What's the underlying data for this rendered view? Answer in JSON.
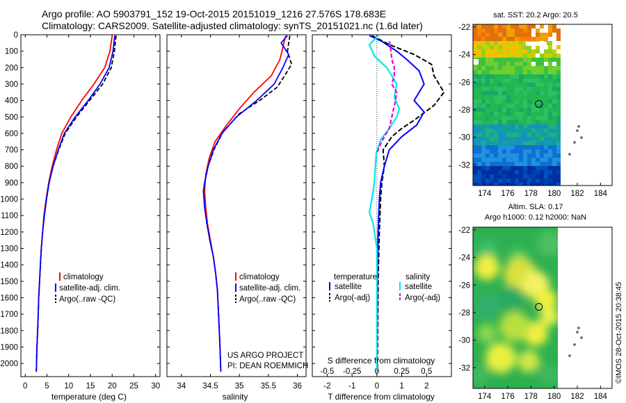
{
  "title_line1": "Argo profile: AO 5903791_152 19-Oct-2015 20151019_1216 27.576S 178.683E",
  "title_line2": "Climatology: CARS2009. Satellite-adjusted climatology: synTS_20151021.nc (1.6d later)",
  "colors": {
    "climatology": "#ff0000",
    "satellite": "#0000ff",
    "argo": "#000000",
    "salinity_satellite": "#00e5ee",
    "salinity_argo": "#e600e6"
  },
  "credits": {
    "line1": "US ARGO PROJECT",
    "line2": "PI: DEAN ROEMMICH"
  },
  "stamp": "©IMOS 28-Oct-2015 20:38:45",
  "chart_data": [
    {
      "type": "line",
      "xlabel": "temperature (deg C)",
      "xlim": [
        -1,
        31
      ],
      "ylim": [
        2080,
        0
      ],
      "xticks": [
        "0",
        "5",
        "10",
        "15",
        "20",
        "25",
        "30"
      ],
      "yticks": [
        "0",
        "100",
        "200",
        "300",
        "400",
        "500",
        "600",
        "700",
        "800",
        "900",
        "1000",
        "1100",
        "1200",
        "1300",
        "1400",
        "1500",
        "1600",
        "1700",
        "1800",
        "1900",
        "2000"
      ],
      "legend": [
        "climatology",
        "satellite-adj. clim.",
        "Argo(..raw -QC)"
      ],
      "series": [
        {
          "name": "climatology",
          "points": [
            [
              20.0,
              5
            ],
            [
              19.5,
              100
            ],
            [
              18.3,
              200
            ],
            [
              15.8,
              300
            ],
            [
              13.0,
              400
            ],
            [
              10.5,
              500
            ],
            [
              8.4,
              600
            ],
            [
              7.2,
              700
            ],
            [
              6.2,
              800
            ],
            [
              5.4,
              900
            ],
            [
              4.8,
              1000
            ],
            [
              4.3,
              1100
            ],
            [
              4.0,
              1200
            ],
            [
              3.7,
              1300
            ],
            [
              3.5,
              1400
            ],
            [
              3.3,
              1500
            ],
            [
              3.1,
              1600
            ],
            [
              3.0,
              1700
            ],
            [
              2.85,
              1800
            ],
            [
              2.7,
              1900
            ],
            [
              2.6,
              2000
            ],
            [
              2.55,
              2050
            ]
          ]
        },
        {
          "name": "satellite-adj. clim.",
          "points": [
            [
              20.6,
              5
            ],
            [
              20.2,
              100
            ],
            [
              19.3,
              200
            ],
            [
              17.2,
              300
            ],
            [
              14.5,
              400
            ],
            [
              11.5,
              500
            ],
            [
              9.0,
              600
            ],
            [
              7.6,
              700
            ],
            [
              6.4,
              800
            ],
            [
              5.5,
              900
            ],
            [
              4.9,
              1000
            ],
            [
              4.4,
              1100
            ],
            [
              4.0,
              1200
            ],
            [
              3.7,
              1300
            ],
            [
              3.5,
              1400
            ],
            [
              3.3,
              1500
            ],
            [
              3.1,
              1600
            ],
            [
              3.0,
              1700
            ],
            [
              2.85,
              1800
            ],
            [
              2.7,
              1900
            ],
            [
              2.6,
              2000
            ],
            [
              2.55,
              2050
            ]
          ]
        },
        {
          "name": "Argo(..raw -QC)",
          "points": [
            [
              20.9,
              5
            ],
            [
              20.5,
              100
            ],
            [
              19.8,
              200
            ],
            [
              17.8,
              300
            ],
            [
              14.8,
              400
            ],
            [
              11.8,
              500
            ],
            [
              9.2,
              600
            ],
            [
              7.7,
              700
            ],
            [
              6.4,
              800
            ],
            [
              5.5,
              900
            ],
            [
              4.9,
              1000
            ],
            [
              4.4,
              1100
            ],
            [
              4.0,
              1200
            ],
            [
              3.7,
              1300
            ],
            [
              3.5,
              1400
            ],
            [
              3.3,
              1500
            ],
            [
              3.1,
              1600
            ],
            [
              3.0,
              1700
            ],
            [
              2.85,
              1800
            ],
            [
              2.7,
              1900
            ],
            [
              2.6,
              2000
            ],
            [
              2.55,
              2050
            ]
          ]
        }
      ]
    },
    {
      "type": "line",
      "xlabel": "salinity",
      "xlim": [
        33.75,
        36.15
      ],
      "ylim": [
        2080,
        0
      ],
      "xticks": [
        "34",
        "34.5",
        "35",
        "35.5",
        "36"
      ],
      "legend": [
        "climatology",
        "satellite-adj. clim.",
        "Argo(..raw -QC)"
      ],
      "series": [
        {
          "name": "climatology",
          "points": [
            [
              35.8,
              5
            ],
            [
              35.7,
              150
            ],
            [
              35.55,
              250
            ],
            [
              35.25,
              350
            ],
            [
              35.0,
              450
            ],
            [
              34.78,
              550
            ],
            [
              34.58,
              650
            ],
            [
              34.48,
              750
            ],
            [
              34.42,
              850
            ],
            [
              34.4,
              950
            ],
            [
              34.42,
              1050
            ],
            [
              34.45,
              1150
            ],
            [
              34.5,
              1250
            ],
            [
              34.55,
              1350
            ],
            [
              34.59,
              1450
            ],
            [
              34.62,
              1550
            ],
            [
              34.64,
              1700
            ],
            [
              34.66,
              1850
            ],
            [
              34.68,
              2050
            ]
          ]
        },
        {
          "name": "satellite-adj. clim.",
          "points": [
            [
              35.83,
              5
            ],
            [
              35.72,
              50
            ],
            [
              35.85,
              120
            ],
            [
              35.75,
              200
            ],
            [
              35.6,
              300
            ],
            [
              35.3,
              400
            ],
            [
              34.95,
              500
            ],
            [
              34.7,
              600
            ],
            [
              34.55,
              700
            ],
            [
              34.46,
              800
            ],
            [
              34.4,
              900
            ],
            [
              34.38,
              950
            ],
            [
              34.4,
              1050
            ],
            [
              34.44,
              1150
            ],
            [
              34.49,
              1250
            ],
            [
              34.55,
              1350
            ],
            [
              34.59,
              1450
            ],
            [
              34.62,
              1550
            ],
            [
              34.64,
              1700
            ],
            [
              34.66,
              1850
            ],
            [
              34.68,
              2050
            ]
          ]
        },
        {
          "name": "Argo(..raw -QC)",
          "points": [
            [
              35.87,
              5
            ],
            [
              35.83,
              100
            ],
            [
              35.9,
              180
            ],
            [
              35.78,
              250
            ],
            [
              35.65,
              320
            ],
            [
              35.35,
              400
            ],
            [
              35.0,
              480
            ],
            [
              34.72,
              590
            ],
            [
              34.56,
              700
            ],
            [
              34.46,
              800
            ],
            [
              34.4,
              900
            ],
            [
              34.38,
              950
            ],
            [
              34.4,
              1050
            ],
            [
              34.44,
              1150
            ],
            [
              34.49,
              1250
            ],
            [
              34.55,
              1350
            ],
            [
              34.59,
              1450
            ],
            [
              34.62,
              1550
            ],
            [
              34.64,
              1700
            ],
            [
              34.66,
              1850
            ],
            [
              34.68,
              2050
            ]
          ]
        }
      ]
    },
    {
      "type": "line",
      "xlabel": "T difference from climatology",
      "xlabel_top": "S difference from climatology",
      "xlim": [
        -2.6,
        3.0
      ],
      "ylim": [
        2080,
        0
      ],
      "xticks": [
        "-2",
        "-1",
        "0",
        "1",
        "2"
      ],
      "sticks": [
        "-0.5",
        "-0.25",
        "0",
        "0.25",
        "0.5"
      ],
      "legend_headers": [
        "temperature",
        "salinity"
      ],
      "legend": [
        "satellite",
        "Argo(-adj)",
        "satellite",
        "Argo(-adj)"
      ],
      "series": [
        {
          "name": "temperature satellite",
          "points": [
            [
              -0.3,
              5
            ],
            [
              0.2,
              40
            ],
            [
              0.8,
              100
            ],
            [
              1.2,
              150
            ],
            [
              1.7,
              220
            ],
            [
              1.9,
              300
            ],
            [
              1.5,
              400
            ],
            [
              1.9,
              470
            ],
            [
              1.6,
              550
            ],
            [
              1.0,
              620
            ],
            [
              0.5,
              700
            ],
            [
              0.3,
              800
            ],
            [
              0.15,
              900
            ],
            [
              0.1,
              1000
            ],
            [
              0.05,
              1200
            ],
            [
              0.02,
              1500
            ],
            [
              0.0,
              2050
            ]
          ]
        },
        {
          "name": "temperature Argo(-adj)",
          "points": [
            [
              -0.2,
              5
            ],
            [
              0.5,
              60
            ],
            [
              1.5,
              120
            ],
            [
              2.2,
              180
            ],
            [
              2.3,
              250
            ],
            [
              2.7,
              350
            ],
            [
              2.3,
              430
            ],
            [
              1.5,
              520
            ],
            [
              1.0,
              570
            ],
            [
              0.6,
              620
            ],
            [
              0.25,
              700
            ],
            [
              0.3,
              800
            ],
            [
              0.2,
              900
            ],
            [
              0.15,
              1000
            ],
            [
              0.1,
              1200
            ],
            [
              0.05,
              1500
            ],
            [
              0.02,
              2050
            ]
          ]
        },
        {
          "name": "salinity satellite",
          "points": [
            [
              0.06,
              5
            ],
            [
              -0.3,
              60
            ],
            [
              -0.1,
              130
            ],
            [
              0.4,
              200
            ],
            [
              0.6,
              250
            ],
            [
              0.8,
              300
            ],
            [
              0.7,
              380
            ],
            [
              0.9,
              450
            ],
            [
              0.8,
              500
            ],
            [
              0.5,
              570
            ],
            [
              0.15,
              640
            ],
            [
              -0.02,
              720
            ],
            [
              -0.06,
              800
            ],
            [
              -0.1,
              900
            ],
            [
              -0.2,
              1000
            ],
            [
              -0.3,
              1080
            ],
            [
              -0.15,
              1150
            ],
            [
              0.0,
              1300
            ],
            [
              0.0,
              2050
            ]
          ]
        },
        {
          "name": "salinity Argo(-adj)",
          "points": [
            [
              0.5,
              40
            ],
            [
              0.55,
              80
            ],
            [
              0.6,
              150
            ],
            [
              0.7,
              200
            ],
            [
              0.7,
              250
            ],
            [
              0.6,
              300
            ],
            [
              0.8,
              350
            ],
            [
              0.75,
              400
            ],
            [
              0.6,
              500
            ],
            [
              0.5,
              570
            ],
            [
              0.3,
              620
            ],
            [
              0.1,
              680
            ],
            [
              0.0,
              720
            ]
          ]
        }
      ]
    },
    {
      "type": "heatmap",
      "title": "sat. SST: 20.2 Argo: 20.5",
      "xlim": [
        173,
        185
      ],
      "ylim": [
        -33.5,
        -21.8
      ],
      "xticks": [
        "174",
        "176",
        "178",
        "180",
        "182",
        "184"
      ],
      "yticks": [
        "-22",
        "-24",
        "-26",
        "-28",
        "-30",
        "-32"
      ],
      "marker": {
        "lon": 178.68,
        "lat": -27.58
      }
    },
    {
      "type": "heatmap",
      "title_line1": "Altim. SLA: 0.17",
      "title_line2": "Argo h1000: 0.12 h2000: NaN",
      "xlim": [
        173,
        185
      ],
      "ylim": [
        -33.5,
        -21.8
      ],
      "xticks": [
        "174",
        "176",
        "178",
        "180",
        "182",
        "184"
      ],
      "yticks": [
        "-22",
        "-24",
        "-26",
        "-28",
        "-30",
        "-32"
      ],
      "marker": {
        "lon": 178.68,
        "lat": -27.58
      }
    }
  ]
}
